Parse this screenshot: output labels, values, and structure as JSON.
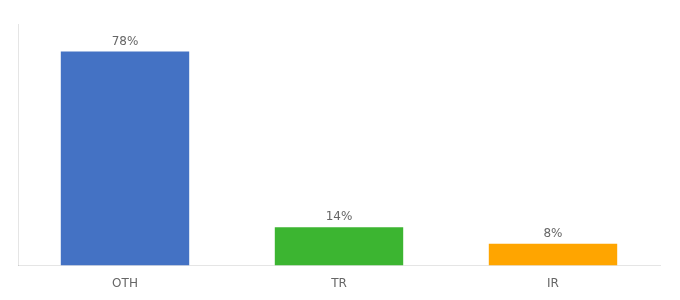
{
  "chart_data": {
    "type": "bar",
    "categories": [
      "OTH",
      "TR",
      "IR"
    ],
    "values": [
      78,
      14,
      8
    ],
    "value_labels": [
      "78%",
      "14%",
      "8%"
    ],
    "colors": [
      "#4472C4",
      "#3CB531",
      "#FFA500"
    ],
    "ylim": [
      0,
      88
    ],
    "grid": false,
    "data_labels": true,
    "tick_labels": "x"
  }
}
